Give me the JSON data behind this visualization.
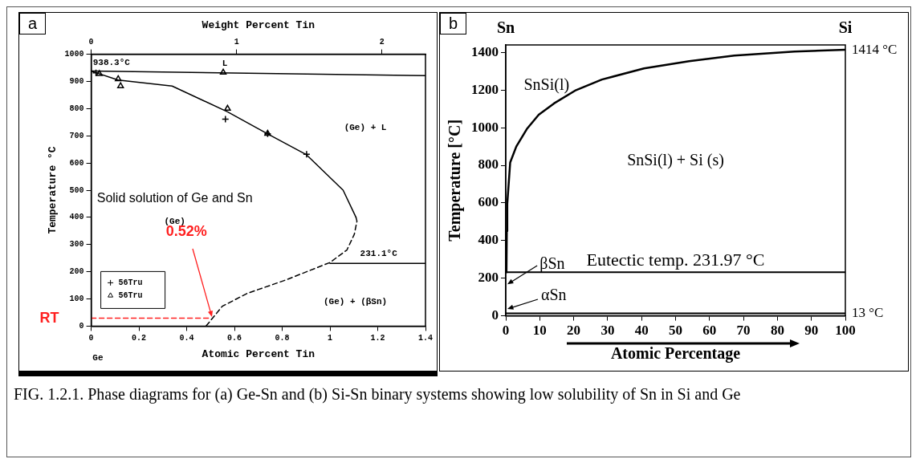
{
  "chart_data": [
    {
      "type": "line",
      "xlabel": "Atomic Percent Tin",
      "ylabel": "Temperature °C",
      "x2label": "Weight Percent Tin",
      "xlim": [
        0,
        1.4
      ],
      "xticks": [
        0,
        0.2,
        0.4,
        0.6,
        0.8,
        1,
        1.2,
        1.4
      ],
      "x2lim": [
        0,
        2.3
      ],
      "x2ticks": [
        0,
        1,
        2
      ],
      "ylim": [
        0,
        1000
      ],
      "yticks": [
        0,
        100,
        200,
        300,
        400,
        500,
        600,
        700,
        800,
        900,
        1000
      ],
      "legend": "bottom left",
      "series": [
        {
          "color": "#000000",
          "marker": "none",
          "line_style": "solid",
          "x": [
            0,
            1.4
          ],
          "values": [
            938,
            921
          ]
        },
        {
          "color": "#000000",
          "marker": "none",
          "line_style": "solid",
          "x": [
            0,
            0.113,
            0.339,
            0.571,
            0.739,
            0.902,
            1.055,
            1.109
          ],
          "values": [
            938,
            905,
            883,
            788,
            707,
            630,
            500,
            400
          ]
        },
        {
          "color": "#000000",
          "marker": "none",
          "line_style": "dashed",
          "x": [
            1.109,
            1.113,
            1.102,
            1.071,
            1.0,
            0.813,
            0.655,
            0.549,
            0.481
          ],
          "values": [
            400,
            386,
            338,
            280,
            234,
            169,
            121,
            73,
            0
          ]
        },
        {
          "color": "#000000",
          "marker": "none",
          "line_style": "solid",
          "x": [
            1.0,
            1.4
          ],
          "values": [
            231,
            231
          ]
        },
        {
          "color": "#ff2020",
          "marker": "none",
          "line_style": "dashed",
          "x": [
            0,
            0.5
          ],
          "values": [
            29,
            29
          ]
        },
        {
          "type": "scatter",
          "name": "56Tru",
          "color": "#000000",
          "marker": "cross",
          "x": [
            0.02,
            0.562,
            0.739,
            0.902
          ],
          "values": [
            932,
            761,
            707,
            632
          ]
        },
        {
          "type": "scatter",
          "name": "56Tru",
          "color": "#000000",
          "marker": "triangle",
          "x": [
            0.034,
            0.113,
            0.123,
            0.553,
            0.571,
            0.739
          ],
          "values": [
            928,
            909,
            883,
            933,
            800,
            708
          ]
        }
      ],
      "annotations": [
        "a",
        "938.3°C",
        "L",
        "(Ge) + L",
        "Solid solution of Ge and Sn",
        "(Ge)",
        "231.1°C",
        "(Ge) + (βSn)",
        {
          "text": "0.52%",
          "x": 0.5,
          "y": 29
        },
        {
          "text": "RT",
          "x": 0,
          "y": 29
        },
        "Ge",
        "FIG. 1.2.1. Phase diagrams for (a) Ge-Sn and (b) Si-Sn binary systems showing low solubility of Sn in Si and Ge"
      ]
    },
    {
      "type": "line",
      "xlabel": "Atomic Percentage",
      "ylabel": "Temperature [°C]",
      "xlim": [
        0,
        100
      ],
      "xticks": [
        0,
        10,
        20,
        30,
        40,
        50,
        60,
        70,
        80,
        90,
        100
      ],
      "ylim": [
        0,
        1440
      ],
      "yticks": [
        0,
        200,
        400,
        600,
        800,
        1000,
        1200,
        1400
      ],
      "series": [
        {
          "color": "#000000",
          "marker": "none",
          "line_style": "solid",
          "x": [
            0.2,
            0.3,
            0.44,
            1.3,
            3.1,
            6.2,
            9.7,
            14.2,
            20.4,
            28.3,
            40.7,
            54,
            67.3,
            85,
            100
          ],
          "values": [
            232,
            450,
            595,
            815,
            900,
            993,
            1069,
            1129,
            1197,
            1256,
            1315,
            1354,
            1383,
            1405,
            1414
          ]
        }
      ],
      "ref_lines": [
        {
          "axis": "y",
          "value": 231.97,
          "label": "Eutectic temp. 231.97 °C"
        },
        {
          "axis": "y",
          "value": 13,
          "label": "13 °C"
        }
      ],
      "annotations": [
        "b",
        "Sn",
        "Si",
        {
          "text": "1414 °C",
          "x": 100,
          "y": 1414
        },
        "SnSi(l)",
        "SnSi(l) + Si (s)",
        "βSn",
        {
          "text": "αSn",
          "x": 0,
          "y": 30
        }
      ]
    }
  ]
}
